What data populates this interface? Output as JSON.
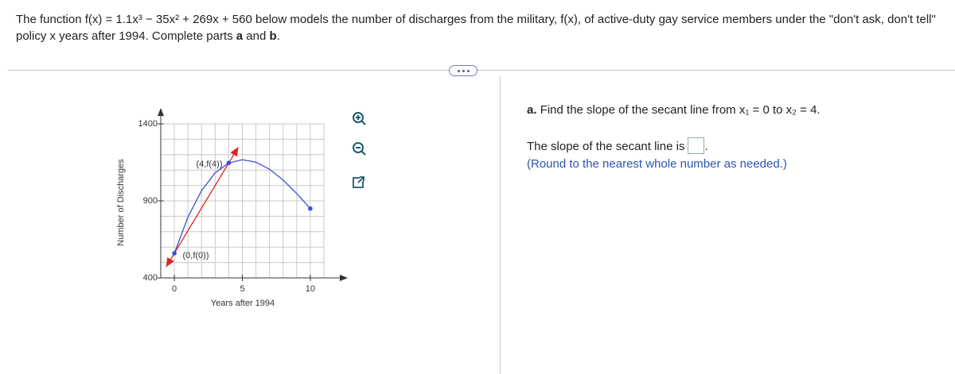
{
  "header": {
    "parts": [
      "The function f(x) = 1.1x³ − 35x² + 269x + 560 below models the number of discharges from the military, f(x), of active-duty gay service members under the \"don't ask, don't tell\" policy x years after 1994. Complete parts ",
      "a",
      " and ",
      "b",
      "."
    ]
  },
  "chart_data": {
    "type": "line",
    "x_label": "Years after 1994",
    "y_label": "Number of Discharges",
    "xlim": [
      -1,
      11
    ],
    "ylim": [
      400,
      1400
    ],
    "xticks": [
      0,
      5,
      10
    ],
    "yticks": [
      400,
      900,
      1400
    ],
    "xgrid": [
      -1,
      0,
      1,
      2,
      3,
      4,
      5,
      6,
      7,
      8,
      9,
      10,
      11
    ],
    "ygrid": [
      400,
      500,
      600,
      700,
      800,
      900,
      1000,
      1100,
      1200,
      1300,
      1400
    ],
    "grid": true,
    "series": [
      {
        "style": "curve",
        "color": "#3c4fd6",
        "x": [
          0,
          1,
          2,
          3,
          4,
          5,
          6,
          7,
          8,
          9,
          10
        ],
        "values": [
          560,
          795.1,
          966.8,
          1081.7,
          1146.4,
          1167.5,
          1151.6,
          1105.3,
          1035.2,
          947.9,
          850
        ]
      },
      {
        "style": "arrow",
        "color": "#e0201e",
        "x": [
          -0.6,
          4.7
        ],
        "values": [
          472,
          1249
        ]
      },
      {
        "style": "markers",
        "color": "#3c4fd6",
        "x": [
          0,
          4,
          10
        ],
        "values": [
          560,
          1146.4,
          850
        ]
      }
    ],
    "annotations": [
      "(4,f(4))",
      "(0,f(0))"
    ]
  },
  "question": {
    "label": "a.",
    "text": "Find the slope of the secant line from x₁ = 0 to x₂ = 4.",
    "answer_prefix": "The slope of the secant line is",
    "answer_suffix": ".",
    "note": "(Round to the nearest whole number as needed.)"
  }
}
